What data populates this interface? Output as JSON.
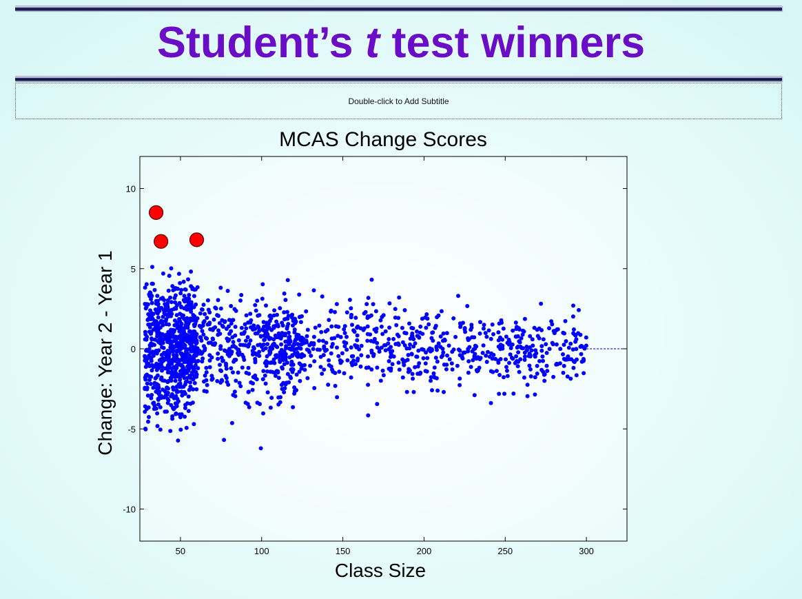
{
  "slide": {
    "title_prefix": "Student’s ",
    "title_italic": "t",
    "title_suffix": " test winners",
    "subtitle_placeholder": "Double-click to Add Subtitle"
  },
  "chart_data": {
    "type": "scatter",
    "title": "MCAS Change Scores",
    "xlabel": "Class Size",
    "ylabel": "Change: Year 2 - Year 1",
    "xlim": [
      25,
      325
    ],
    "ylim": [
      -12,
      12
    ],
    "xticks": [
      50,
      100,
      150,
      200,
      250,
      300
    ],
    "yticks": [
      -10,
      -5,
      0,
      5,
      10
    ],
    "reference_line": {
      "y": 0,
      "x_from": 300,
      "x_to": 325,
      "style": "dashed"
    },
    "series": [
      {
        "values_color": "#0000ff",
        "marker": "circle-small",
        "approx_point_count": 1800,
        "x_range": [
          28,
          300
        ],
        "y_spread_note": "variance decreases with class size: about ±5.5 near x=30, ±3 near x=100, ±2 near x=200, ±1.5 near x=300"
      },
      {
        "values_color": "#ff0000",
        "marker": "circle-large",
        "points": [
          [
            35,
            8.5
          ],
          [
            38,
            6.7
          ],
          [
            60,
            6.8
          ]
        ]
      }
    ],
    "grid": false
  }
}
